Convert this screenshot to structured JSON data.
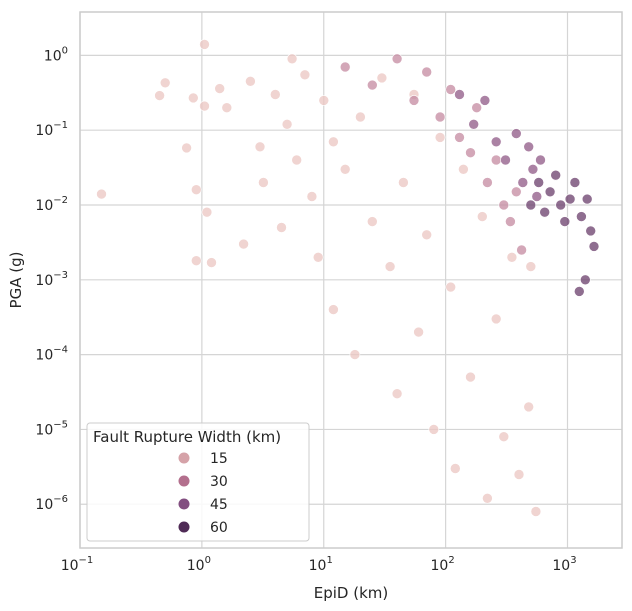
{
  "chart_data": {
    "type": "scatter",
    "title": "",
    "xlabel": "EpiD (km)",
    "ylabel": "PGA (g)",
    "x_scale": "log",
    "y_scale": "log",
    "xlim": [
      0.1,
      2800
    ],
    "ylim": [
      2.6e-07,
      3.8
    ],
    "grid": true,
    "x_ticks": [
      {
        "value": 0.1,
        "base": "10",
        "exp": "−1"
      },
      {
        "value": 1,
        "base": "10",
        "exp": "0"
      },
      {
        "value": 10,
        "base": "10",
        "exp": "1"
      },
      {
        "value": 100,
        "base": "10",
        "exp": "2"
      },
      {
        "value": 1000,
        "base": "10",
        "exp": "3"
      }
    ],
    "y_ticks": [
      {
        "value": 1,
        "base": "10",
        "exp": "0"
      },
      {
        "value": 0.1,
        "base": "10",
        "exp": "−1"
      },
      {
        "value": 0.01,
        "base": "10",
        "exp": "−2"
      },
      {
        "value": 0.001,
        "base": "10",
        "exp": "−3"
      },
      {
        "value": 0.0001,
        "base": "10",
        "exp": "−4"
      },
      {
        "value": 1e-05,
        "base": "10",
        "exp": "−5"
      },
      {
        "value": 1e-06,
        "base": "10",
        "exp": "−6"
      }
    ],
    "hue": {
      "name": "Fault Rupture Width (km)",
      "legend_placement": "lower-left",
      "levels": [
        {
          "label": "15",
          "color": "#d5a2a8"
        },
        {
          "label": "30",
          "color": "#b36f8d"
        },
        {
          "label": "45",
          "color": "#824e80"
        },
        {
          "label": "60",
          "color": "#4f2b56"
        }
      ]
    },
    "series": [
      {
        "name": "15",
        "color": "#ebc6c2",
        "points": [
          [
            0.15,
            0.014
          ],
          [
            0.45,
            0.29
          ],
          [
            0.5,
            0.43
          ],
          [
            0.75,
            0.058
          ],
          [
            0.85,
            0.27
          ],
          [
            0.9,
            0.016
          ],
          [
            0.9,
            0.0018
          ],
          [
            1.05,
            1.4
          ],
          [
            1.05,
            0.21
          ],
          [
            1.1,
            0.008
          ],
          [
            1.2,
            0.0017
          ],
          [
            1.4,
            0.36
          ],
          [
            1.6,
            0.2
          ],
          [
            2.2,
            0.003
          ],
          [
            2.5,
            0.45
          ],
          [
            3.0,
            0.06
          ],
          [
            3.2,
            0.02
          ],
          [
            4.0,
            0.3
          ],
          [
            4.5,
            0.005
          ],
          [
            5.0,
            0.12
          ],
          [
            5.5,
            0.9
          ],
          [
            6.0,
            0.04
          ],
          [
            7.0,
            0.55
          ],
          [
            8.0,
            0.013
          ],
          [
            9.0,
            0.002
          ],
          [
            10,
            0.25
          ],
          [
            12,
            0.07
          ],
          [
            12,
            0.0004
          ],
          [
            15,
            0.03
          ],
          [
            18,
            0.0001
          ],
          [
            20,
            0.15
          ],
          [
            25,
            0.006
          ],
          [
            30,
            0.5
          ],
          [
            35,
            0.0015
          ],
          [
            40,
            3e-05
          ],
          [
            45,
            0.02
          ],
          [
            55,
            0.3
          ],
          [
            60,
            0.0002
          ],
          [
            70,
            0.004
          ],
          [
            80,
            1e-05
          ],
          [
            90,
            0.08
          ],
          [
            110,
            0.0008
          ],
          [
            120,
            3e-06
          ],
          [
            140,
            0.03
          ],
          [
            160,
            5e-05
          ],
          [
            200,
            0.007
          ],
          [
            220,
            1.2e-06
          ],
          [
            260,
            0.0003
          ],
          [
            300,
            8e-06
          ],
          [
            350,
            0.002
          ],
          [
            400,
            2.5e-06
          ],
          [
            480,
            2e-05
          ],
          [
            500,
            0.0015
          ],
          [
            550,
            8e-07
          ]
        ]
      },
      {
        "name": "30",
        "color": "#c48aa0",
        "points": [
          [
            15,
            0.7
          ],
          [
            25,
            0.4
          ],
          [
            40,
            0.9
          ],
          [
            55,
            0.25
          ],
          [
            70,
            0.6
          ],
          [
            90,
            0.15
          ],
          [
            110,
            0.35
          ],
          [
            130,
            0.08
          ],
          [
            160,
            0.05
          ],
          [
            180,
            0.2
          ],
          [
            220,
            0.02
          ],
          [
            260,
            0.04
          ],
          [
            300,
            0.01
          ],
          [
            340,
            0.006
          ],
          [
            380,
            0.015
          ],
          [
            420,
            0.0025
          ]
        ]
      },
      {
        "name": "45",
        "color": "#8f5886",
        "points": [
          [
            130,
            0.3
          ],
          [
            170,
            0.12
          ],
          [
            210,
            0.25
          ],
          [
            260,
            0.07
          ],
          [
            310,
            0.04
          ],
          [
            380,
            0.09
          ],
          [
            430,
            0.02
          ],
          [
            480,
            0.06
          ],
          [
            520,
            0.03
          ],
          [
            560,
            0.013
          ],
          [
            600,
            0.04
          ]
        ]
      },
      {
        "name": "60",
        "color": "#6a3d6b",
        "points": [
          [
            500,
            0.01
          ],
          [
            580,
            0.02
          ],
          [
            650,
            0.008
          ],
          [
            720,
            0.015
          ],
          [
            800,
            0.025
          ],
          [
            880,
            0.01
          ],
          [
            950,
            0.006
          ],
          [
            1050,
            0.012
          ],
          [
            1150,
            0.02
          ],
          [
            1300,
            0.007
          ],
          [
            1450,
            0.012
          ],
          [
            1550,
            0.0045
          ],
          [
            1650,
            0.0028
          ],
          [
            1400,
            0.001
          ],
          [
            1250,
            0.0007
          ]
        ]
      }
    ]
  }
}
